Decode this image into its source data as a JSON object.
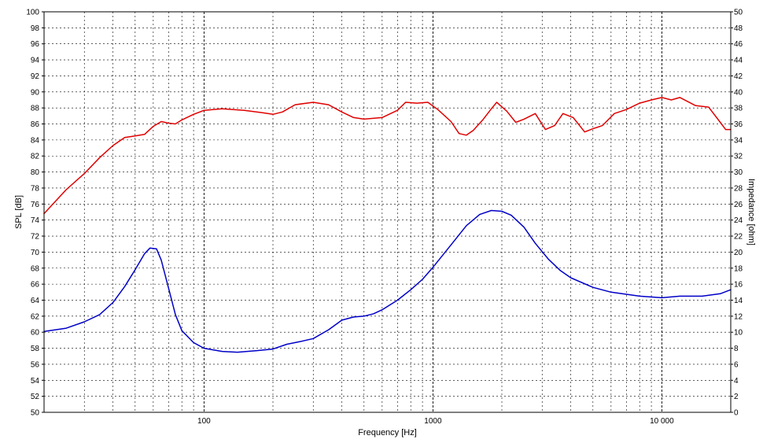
{
  "chart_data": {
    "type": "line",
    "title": "",
    "xlabel": "Frequency [Hz]",
    "ylabel": "SPL [dB]",
    "ylabel_right": "Impedance [ohm]",
    "x_scale": "log",
    "xlim": [
      20,
      20000
    ],
    "ylim": [
      50,
      100
    ],
    "ylim_right": [
      0,
      50
    ],
    "grid": true,
    "x_tick_labels": [
      "100",
      "1000",
      "10 000"
    ],
    "x_tick_values": [
      100,
      1000,
      10000
    ],
    "y_ticks": [
      50,
      52,
      54,
      56,
      58,
      60,
      62,
      64,
      66,
      68,
      70,
      72,
      74,
      76,
      78,
      80,
      82,
      84,
      86,
      88,
      90,
      92,
      94,
      96,
      98,
      100
    ],
    "y_ticks_right": [
      0,
      2,
      4,
      6,
      8,
      10,
      12,
      14,
      16,
      18,
      20,
      22,
      24,
      26,
      28,
      30,
      32,
      34,
      36,
      38,
      40,
      42,
      44,
      46,
      48,
      50
    ],
    "series": [
      {
        "color": "#e00000",
        "axis": "left",
        "x": [
          20,
          25,
          30,
          35,
          40,
          45,
          50,
          55,
          60,
          65,
          70,
          75,
          80,
          90,
          100,
          120,
          150,
          180,
          200,
          220,
          250,
          300,
          350,
          400,
          450,
          500,
          600,
          700,
          760,
          850,
          950,
          1050,
          1200,
          1300,
          1400,
          1500,
          1650,
          1800,
          1900,
          2100,
          2300,
          2500,
          2800,
          3100,
          3400,
          3700,
          4100,
          4600,
          5000,
          5500,
          6200,
          7000,
          8000,
          9000,
          10000,
          11000,
          12000,
          14000,
          16000,
          18000,
          19000,
          20000
        ],
        "y": [
          74.8,
          77.8,
          79.8,
          81.8,
          83.3,
          84.3,
          84.5,
          84.7,
          85.7,
          86.3,
          86.1,
          86.0,
          86.5,
          87.2,
          87.7,
          87.9,
          87.7,
          87.4,
          87.2,
          87.5,
          88.4,
          88.7,
          88.4,
          87.5,
          86.8,
          86.6,
          86.8,
          87.7,
          88.7,
          88.6,
          88.7,
          87.8,
          86.3,
          84.8,
          84.6,
          85.2,
          86.5,
          87.9,
          88.7,
          87.6,
          86.2,
          86.6,
          87.3,
          85.3,
          85.8,
          87.3,
          86.8,
          85.0,
          85.4,
          85.8,
          87.3,
          87.8,
          88.6,
          89.0,
          89.3,
          89.0,
          89.3,
          88.3,
          88.1,
          86.2,
          85.3,
          85.3
        ]
      },
      {
        "color": "#0000c8",
        "axis": "right",
        "x": [
          20,
          25,
          30,
          35,
          40,
          45,
          50,
          55,
          58,
          62,
          65,
          70,
          75,
          80,
          90,
          100,
          120,
          140,
          170,
          200,
          230,
          260,
          300,
          350,
          400,
          450,
          500,
          550,
          600,
          700,
          800,
          900,
          1000,
          1200,
          1400,
          1600,
          1800,
          2000,
          2200,
          2500,
          2800,
          3200,
          3600,
          4000,
          5000,
          6000,
          8000,
          10000,
          12000,
          15000,
          18000,
          20000
        ],
        "y": [
          10.1,
          10.5,
          11.3,
          12.2,
          13.7,
          15.7,
          17.8,
          19.8,
          20.5,
          20.4,
          19.0,
          15.5,
          12.2,
          10.2,
          8.7,
          8.0,
          7.6,
          7.5,
          7.7,
          7.9,
          8.5,
          8.8,
          9.2,
          10.3,
          11.5,
          11.9,
          12.0,
          12.3,
          12.8,
          14.0,
          15.3,
          16.6,
          18.1,
          20.9,
          23.3,
          24.7,
          25.2,
          25.1,
          24.6,
          23.1,
          21.1,
          19.1,
          17.7,
          16.8,
          15.6,
          15.0,
          14.5,
          14.3,
          14.5,
          14.5,
          14.8,
          15.3
        ]
      }
    ]
  }
}
